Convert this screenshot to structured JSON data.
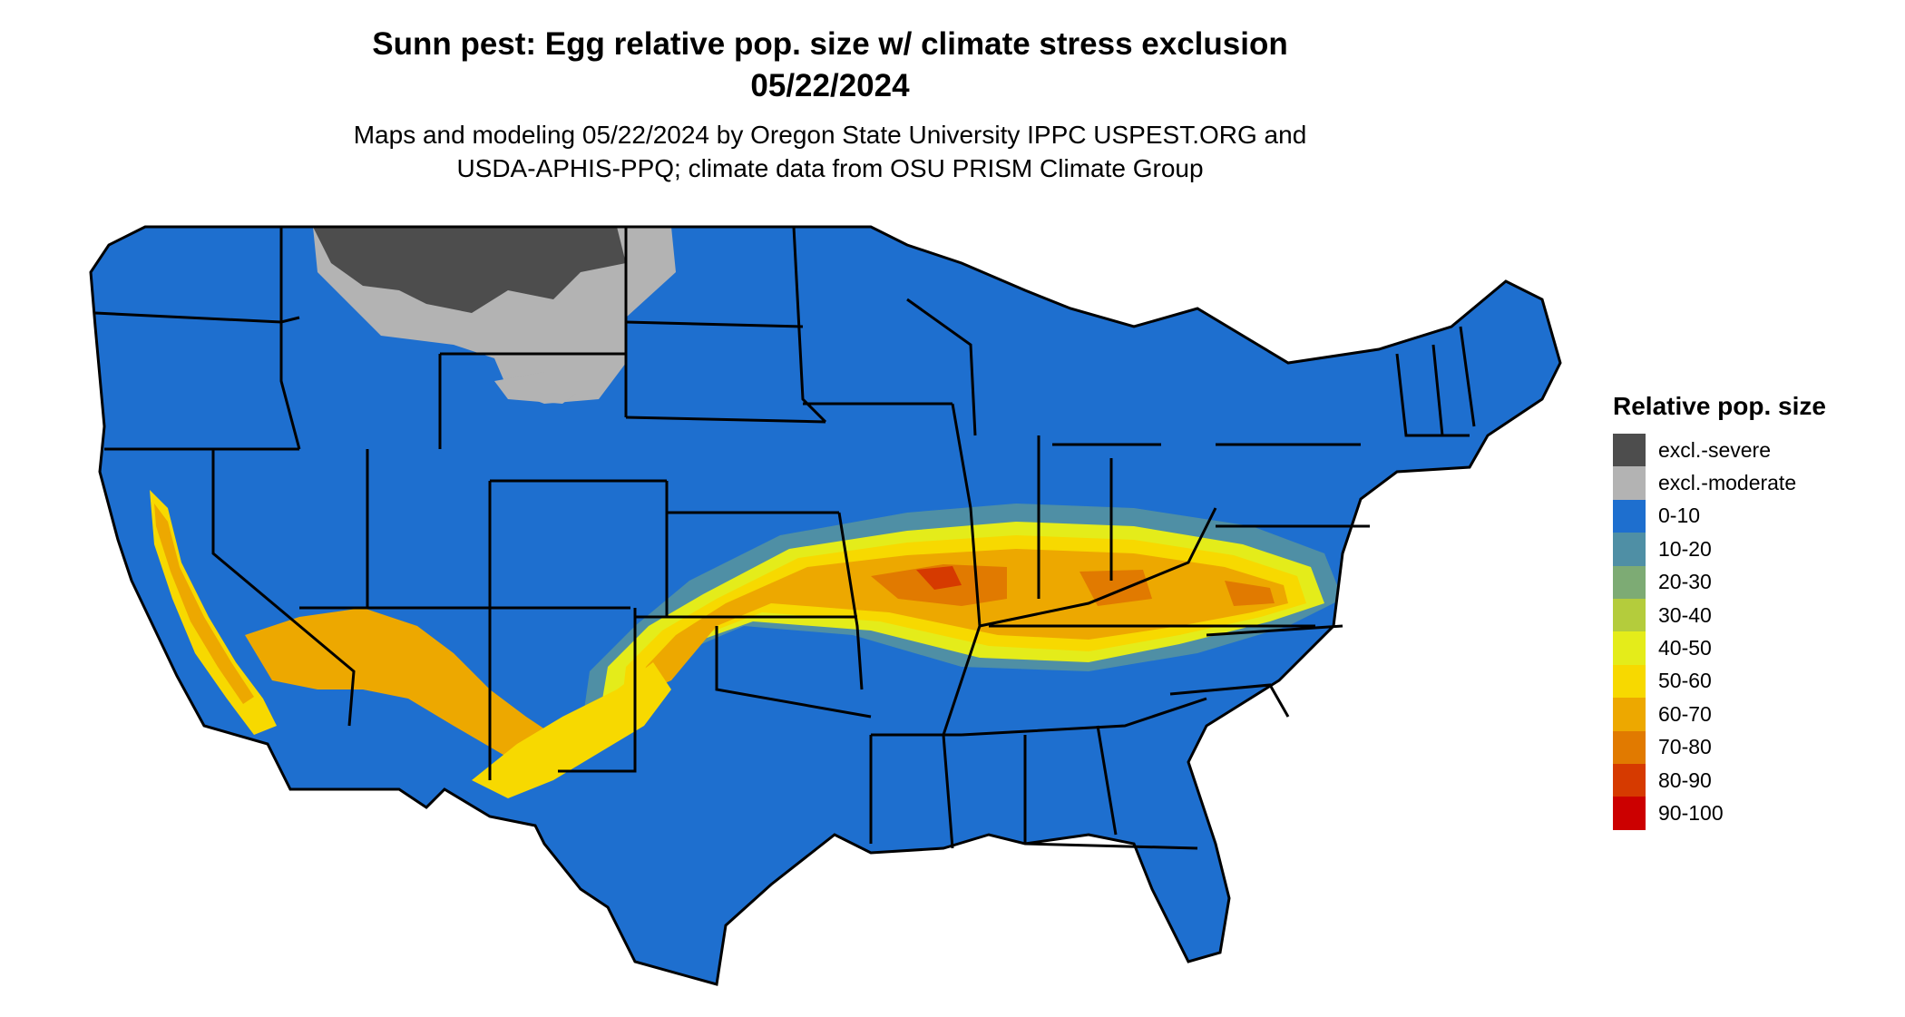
{
  "header": {
    "title_line1": "Sunn pest: Egg relative pop. size w/ climate stress exclusion",
    "title_line2": "05/22/2024",
    "subtitle_line1": "Maps and modeling 05/22/2024 by Oregon State University IPPC USPEST.ORG and",
    "subtitle_line2": "USDA-APHIS-PPQ; climate data from OSU PRISM Climate Group"
  },
  "legend": {
    "title": "Relative pop. size",
    "items": [
      {
        "label": "excl.-severe",
        "color": "#4d4d4d"
      },
      {
        "label": "excl.-moderate",
        "color": "#b3b3b3"
      },
      {
        "label": "0-10",
        "color": "#1e6fcf"
      },
      {
        "label": "10-20",
        "color": "#4f8fa5"
      },
      {
        "label": "20-30",
        "color": "#7dab74"
      },
      {
        "label": "30-40",
        "color": "#b4cc3c"
      },
      {
        "label": "40-50",
        "color": "#e4ec1a"
      },
      {
        "label": "50-60",
        "color": "#f7d900"
      },
      {
        "label": "60-70",
        "color": "#eda800"
      },
      {
        "label": "70-80",
        "color": "#e17a00"
      },
      {
        "label": "80-90",
        "color": "#d63a00"
      },
      {
        "label": "90-100",
        "color": "#cc0000"
      }
    ]
  },
  "map": {
    "region": "Contiguous United States",
    "base_color": "#1e6fcf",
    "border_color": "#000000"
  }
}
